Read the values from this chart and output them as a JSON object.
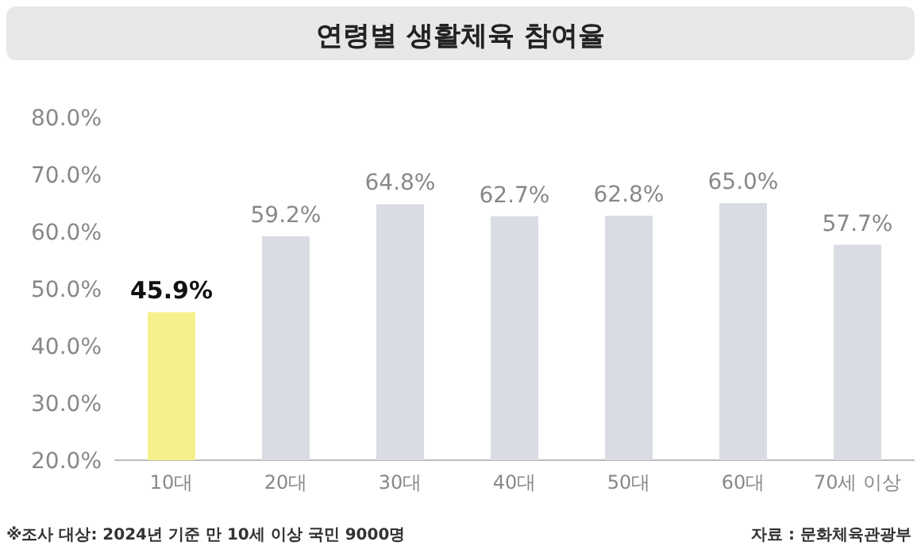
{
  "chart_data": {
    "type": "bar",
    "title": "연령별 생활체육 참여율",
    "categories": [
      "10대",
      "20대",
      "30대",
      "40대",
      "50대",
      "60대",
      "70세 이상"
    ],
    "values": [
      45.9,
      59.2,
      64.8,
      62.7,
      62.8,
      65.0,
      57.7
    ],
    "colors": [
      "#f6f08c",
      "#d9dce3",
      "#d9dce3",
      "#d9dce3",
      "#d9dce3",
      "#d9dce3",
      "#d9dce3"
    ],
    "value_labels": [
      "45.9%",
      "59.2%",
      "64.8%",
      "62.7%",
      "62.8%",
      "65.0%",
      "57.7%"
    ],
    "ylim": [
      20,
      80
    ],
    "yticks": [
      {
        "value": 20,
        "label": "20.0%"
      },
      {
        "value": 30,
        "label": "30.0%"
      },
      {
        "value": 40,
        "label": "40.0%"
      },
      {
        "value": 50,
        "label": "50.0%"
      },
      {
        "value": 60,
        "label": "60.0%"
      },
      {
        "value": 70,
        "label": "70.0%"
      },
      {
        "value": 80,
        "label": "80.0%"
      }
    ],
    "grid": false,
    "annotations": [
      "※조사 대상: 2024년 기준 만 10세 이상 국민 9000명",
      "자료 : 문화체육관광부"
    ]
  }
}
